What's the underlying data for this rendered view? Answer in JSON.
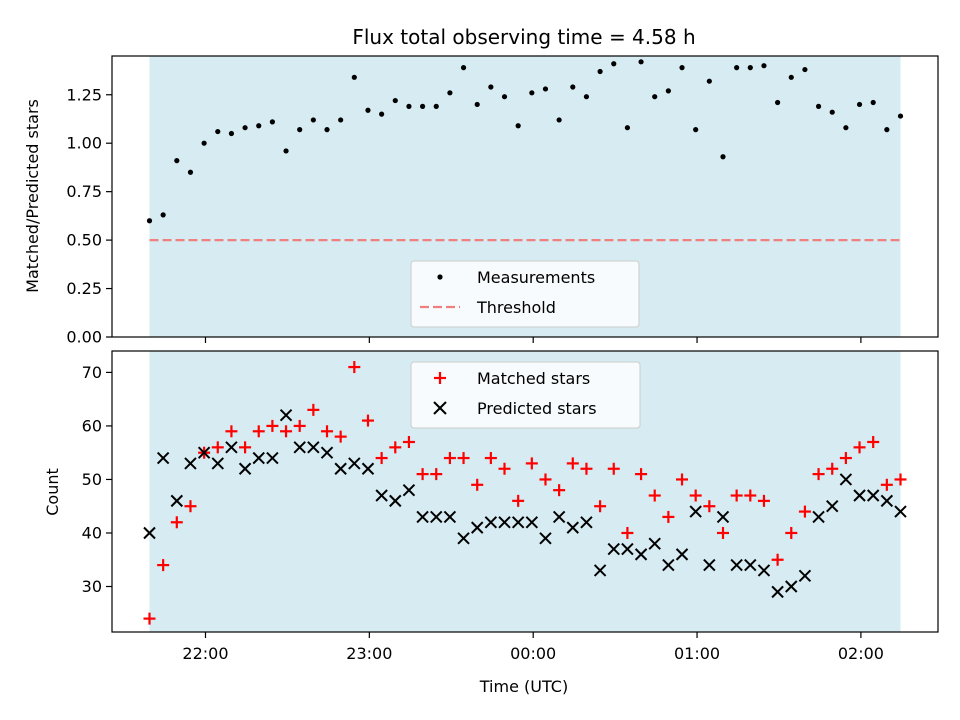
{
  "title": "Flux total observing time = 4.58 h",
  "colors": {
    "band": "#add8e6",
    "threshold": "#f08080",
    "measurement": "#000000",
    "matched": "#ff0000",
    "predicted": "#000000"
  },
  "chart_data": [
    {
      "type": "scatter",
      "panel": "top",
      "ylabel": "Matched/Predicted stars",
      "ylim": [
        0,
        1.45
      ],
      "yticks": [
        0.0,
        0.25,
        0.5,
        0.75,
        1.0,
        1.25
      ],
      "ytick_labels": [
        "0.00",
        "0.25",
        "0.50",
        "0.75",
        "1.00",
        "1.25"
      ],
      "legend_placement": "lower-center",
      "threshold": {
        "name": "Threshold",
        "value": 0.5
      },
      "series": [
        {
          "name": "Measurements",
          "values": [
            0.6,
            0.63,
            0.91,
            0.85,
            1.0,
            1.06,
            1.05,
            1.08,
            1.09,
            1.11,
            0.96,
            1.07,
            1.12,
            1.07,
            1.12,
            1.34,
            1.17,
            1.15,
            1.22,
            1.19,
            1.19,
            1.19,
            1.26,
            1.39,
            1.2,
            1.29,
            1.24,
            1.09,
            1.26,
            1.28,
            1.12,
            1.29,
            1.24,
            1.37,
            1.41,
            1.08,
            1.42,
            1.24,
            1.27,
            1.39,
            1.07,
            1.32,
            0.93,
            1.39,
            1.39,
            1.4,
            1.21,
            1.34,
            1.38,
            1.19,
            1.16,
            1.08,
            1.2,
            1.21,
            1.07,
            1.14
          ]
        }
      ]
    },
    {
      "type": "scatter",
      "panel": "bottom",
      "xlabel": "Time (UTC)",
      "ylabel": "Count",
      "ylim": [
        21.5,
        74
      ],
      "yticks": [
        30,
        40,
        50,
        60,
        70
      ],
      "xtick_labels": [
        "22:00",
        "23:00",
        "00:00",
        "01:00",
        "02:00"
      ],
      "legend_placement": "upper-center",
      "series": [
        {
          "name": "Matched stars",
          "values": [
            24,
            34,
            42,
            45,
            55,
            56,
            59,
            56,
            59,
            60,
            59,
            60,
            63,
            59,
            58,
            71,
            61,
            54,
            56,
            57,
            51,
            51,
            54,
            54,
            49,
            54,
            52,
            46,
            53,
            50,
            48,
            53,
            52,
            45,
            52,
            40,
            51,
            47,
            43,
            50,
            47,
            45,
            40,
            47,
            47,
            46,
            35,
            40,
            44,
            51,
            52,
            54,
            56,
            57,
            49,
            50
          ]
        },
        {
          "name": "Predicted stars",
          "values": [
            40,
            54,
            46,
            53,
            55,
            53,
            56,
            52,
            54,
            54,
            62,
            56,
            56,
            55,
            52,
            53,
            52,
            47,
            46,
            48,
            43,
            43,
            43,
            39,
            41,
            42,
            42,
            42,
            42,
            39,
            43,
            41,
            42,
            33,
            37,
            37,
            36,
            38,
            34,
            36,
            44,
            34,
            43,
            34,
            34,
            33,
            29,
            30,
            32,
            43,
            45,
            50,
            47,
            47,
            46,
            44
          ]
        }
      ]
    }
  ]
}
